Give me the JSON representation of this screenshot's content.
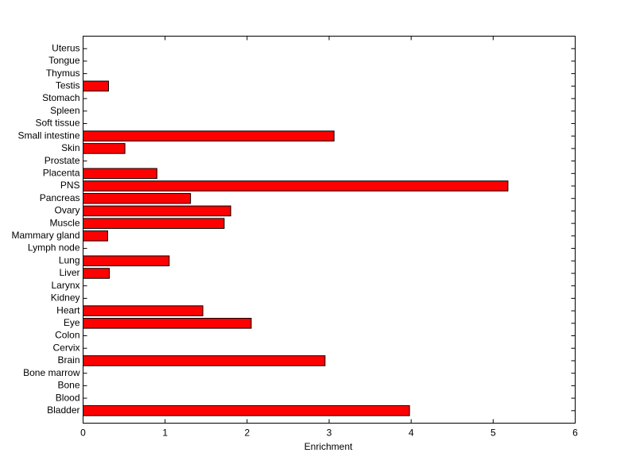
{
  "chart_data": {
    "type": "barh",
    "xlabel": "Enrichment",
    "categories": [
      "Bladder",
      "Blood",
      "Bone",
      "Bone marrow",
      "Brain",
      "Cervix",
      "Colon",
      "Eye",
      "Heart",
      "Kidney",
      "Larynx",
      "Liver",
      "Lung",
      "Lymph node",
      "Mammary gland",
      "Muscle",
      "Ovary",
      "Pancreas",
      "PNS",
      "Placenta",
      "Prostate",
      "Skin",
      "Small intestine",
      "Soft tissue",
      "Spleen",
      "Stomach",
      "Testis",
      "Thymus",
      "Tongue",
      "Uterus"
    ],
    "values": [
      3.98,
      0,
      0,
      0,
      2.95,
      0,
      0,
      2.05,
      1.46,
      0,
      0,
      0.32,
      1.05,
      0,
      0.3,
      1.72,
      1.8,
      1.31,
      5.18,
      0.9,
      0,
      0.51,
      3.06,
      0,
      0,
      0,
      0.31,
      0,
      0,
      0
    ],
    "color": "#ff0000",
    "xlim": [
      0,
      6
    ],
    "xticks": [
      0,
      1,
      2,
      3,
      4,
      5,
      6
    ]
  }
}
